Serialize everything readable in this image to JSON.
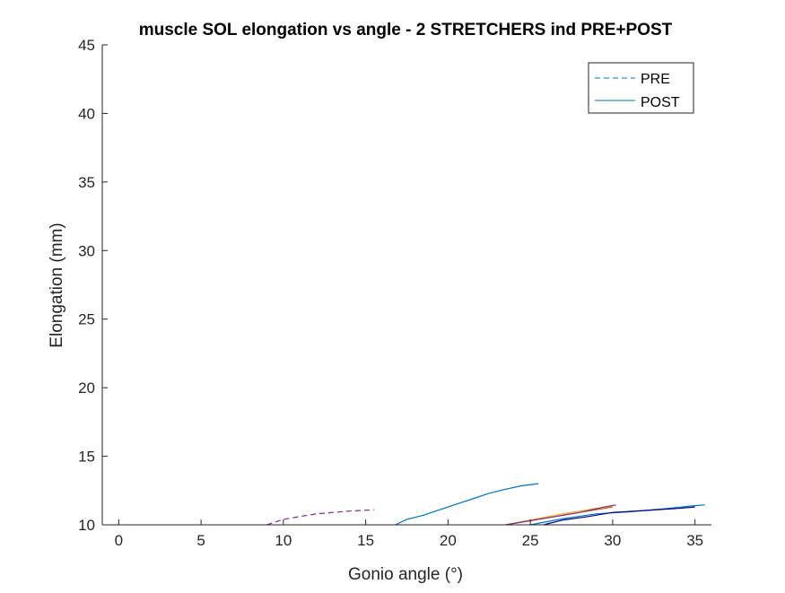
{
  "chart_data": {
    "type": "line",
    "title": "muscle SOL elongation vs angle - 2 STRETCHERS ind PRE+POST",
    "xlabel": "Gonio angle (°)",
    "ylabel": "Elongation (mm)",
    "xlim": [
      -1,
      36
    ],
    "ylim": [
      10,
      45
    ],
    "xticks": [
      0,
      5,
      10,
      15,
      20,
      25,
      30,
      35
    ],
    "yticks": [
      10,
      15,
      20,
      25,
      30,
      35,
      40,
      45
    ],
    "grid": false,
    "legend": {
      "placement": "top-right",
      "entries": [
        {
          "label": "PRE",
          "style": "dashed",
          "color": "#0072BD"
        },
        {
          "label": "POST",
          "style": "solid",
          "color": "#0072BD"
        }
      ]
    },
    "series": [
      {
        "style": "dashed",
        "color": "#7E2F8E",
        "points": [
          [
            9,
            10.0
          ],
          [
            10,
            10.4
          ],
          [
            11,
            10.6
          ],
          [
            12,
            10.8
          ],
          [
            13,
            10.9
          ],
          [
            14,
            11.0
          ],
          [
            15.5,
            11.1
          ]
        ]
      },
      {
        "style": "solid",
        "color": "#0072BD",
        "points": [
          [
            16.8,
            10.0
          ],
          [
            17.5,
            10.4
          ],
          [
            18.5,
            10.7
          ],
          [
            19.5,
            11.1
          ],
          [
            20.5,
            11.5
          ],
          [
            21.5,
            11.9
          ],
          [
            22.5,
            12.3
          ],
          [
            23.5,
            12.6
          ],
          [
            24.5,
            12.85
          ],
          [
            25.5,
            13.0
          ]
        ]
      },
      {
        "style": "solid",
        "color": "#D95319",
        "points": [
          [
            23.5,
            10.0
          ],
          [
            25,
            10.3
          ],
          [
            26.5,
            10.6
          ],
          [
            28,
            10.9
          ],
          [
            29.5,
            11.2
          ],
          [
            30,
            11.3
          ]
        ]
      },
      {
        "style": "solid",
        "color": "#EDB120",
        "points": [
          [
            23.5,
            10.0
          ],
          [
            25,
            10.35
          ],
          [
            26.5,
            10.7
          ],
          [
            28,
            11.0
          ],
          [
            29,
            11.2
          ],
          [
            30,
            11.35
          ]
        ]
      },
      {
        "style": "solid",
        "color": "#7E2F8E",
        "points": [
          [
            23.5,
            10.0
          ],
          [
            25,
            10.3
          ],
          [
            26.5,
            10.6
          ],
          [
            28,
            10.9
          ],
          [
            29.5,
            11.3
          ],
          [
            30.2,
            11.45
          ]
        ]
      },
      {
        "style": "solid",
        "color": "#0072BD",
        "points": [
          [
            25,
            10.0
          ],
          [
            27,
            10.45
          ],
          [
            29,
            10.8
          ],
          [
            31,
            10.95
          ],
          [
            33,
            11.15
          ],
          [
            35,
            11.4
          ],
          [
            35.6,
            11.45
          ]
        ]
      },
      {
        "style": "solid",
        "color": "#000080",
        "points": [
          [
            25.8,
            10.0
          ],
          [
            27,
            10.35
          ],
          [
            28.5,
            10.6
          ],
          [
            30,
            10.9
          ],
          [
            32,
            11.05
          ],
          [
            34,
            11.2
          ],
          [
            35,
            11.3
          ]
        ]
      }
    ]
  }
}
